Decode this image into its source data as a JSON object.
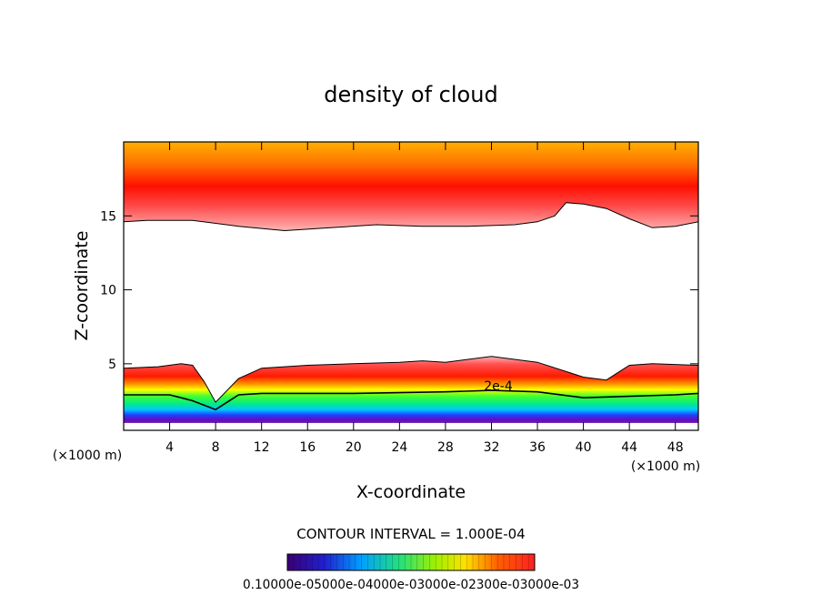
{
  "chart_data": {
    "type": "heatmap",
    "title": "density of cloud",
    "xlabel": "X-coordinate",
    "ylabel": "Z-coordinate",
    "x_unit_left": "(×1000 m)",
    "x_unit_right": "(×1000 m)",
    "xlim": [
      0,
      50
    ],
    "ylim": [
      0.5,
      20
    ],
    "xticks": [
      "4",
      "8",
      "12",
      "16",
      "20",
      "24",
      "28",
      "32",
      "36",
      "40",
      "44",
      "48"
    ],
    "xtick_values": [
      4,
      8,
      12,
      16,
      20,
      24,
      28,
      32,
      36,
      40,
      44,
      48
    ],
    "yticks": [
      "5",
      "10",
      "15"
    ],
    "ytick_values": [
      5,
      10,
      15
    ],
    "contour_label": "2e-4",
    "contour_interval_text": "CONTOUR INTERVAL = 1.000E-04",
    "colorbar": {
      "min": 0.0001,
      "max": 0.0003,
      "tick_labels_text": "0.10000e-05000e-04000e-03000e-02300e-03000e-03"
    },
    "upper_layer": {
      "description_levels": "cloud density high aloft",
      "bottom_boundary_x": [
        0,
        2,
        6,
        10,
        14,
        18,
        22,
        26,
        30,
        34,
        36,
        37.5,
        38.5,
        40,
        42,
        44,
        46,
        48,
        50
      ],
      "bottom_boundary_z": [
        14.6,
        14.7,
        14.7,
        14.3,
        14.0,
        14.2,
        14.4,
        14.3,
        14.3,
        14.4,
        14.6,
        15.0,
        15.9,
        15.8,
        15.5,
        14.8,
        14.2,
        14.3,
        14.6
      ]
    },
    "lower_layer": {
      "top_boundary_x": [
        0,
        3,
        5,
        6,
        7,
        8,
        9,
        10,
        12,
        16,
        20,
        24,
        26,
        28,
        32,
        36,
        40,
        42,
        43,
        44,
        46,
        50
      ],
      "top_boundary_z": [
        4.7,
        4.8,
        5.0,
        4.9,
        3.8,
        2.4,
        3.2,
        4.0,
        4.7,
        4.9,
        5.0,
        5.1,
        5.2,
        5.1,
        5.5,
        5.1,
        4.1,
        3.9,
        4.4,
        4.9,
        5.0,
        4.9
      ],
      "contour_2e4_x": [
        0,
        4,
        5,
        6,
        7,
        8,
        9,
        10,
        12,
        20,
        28,
        32,
        36,
        40,
        44,
        48,
        50
      ],
      "contour_2e4_z": [
        2.9,
        2.9,
        2.7,
        2.5,
        2.2,
        1.9,
        2.4,
        2.9,
        3.0,
        3.0,
        3.1,
        3.2,
        3.1,
        2.7,
        2.8,
        2.9,
        3.0
      ],
      "bottom_boundary_z": 1.0
    }
  }
}
